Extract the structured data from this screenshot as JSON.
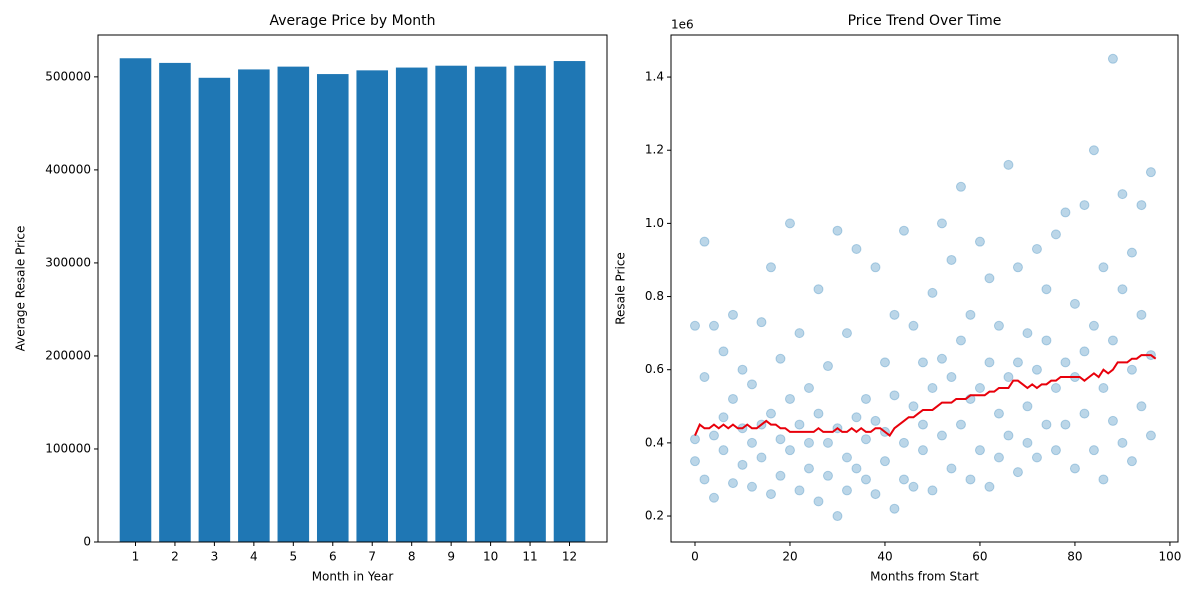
{
  "chart_data": [
    {
      "type": "bar",
      "title": "Average Price by Month",
      "x_label": "Month in Year",
      "y_label": "Average Resale Price",
      "categories": [
        "1",
        "2",
        "3",
        "4",
        "5",
        "6",
        "7",
        "8",
        "9",
        "10",
        "11",
        "12"
      ],
      "values": [
        520000,
        515000,
        499000,
        508000,
        511000,
        503000,
        507000,
        510000,
        512000,
        511000,
        512000,
        517000
      ],
      "color": "#1f77b4",
      "ylim": [
        0,
        545000
      ],
      "yticks": [
        0,
        100000,
        200000,
        300000,
        400000,
        500000
      ]
    },
    {
      "type": "scatter",
      "title": "Price Trend Over Time",
      "x_label": "Months from Start",
      "y_label": "Resale Price",
      "y_offset_label": "1e6",
      "xlim": [
        -5.05,
        101.7
      ],
      "xticks": [
        0,
        20,
        40,
        60,
        80,
        100
      ],
      "ylim": [
        0.129,
        1.515
      ],
      "yticks": [
        0.2,
        0.4,
        0.6,
        0.8,
        {
          "value": 1,
          "label": "1.0"
        },
        1.2,
        1.4
      ],
      "series": [
        {
          "type": "scatter",
          "color": "#1f77b4",
          "alpha": 0.3,
          "x": [
            0,
            0,
            0,
            2,
            2,
            2,
            4,
            4,
            4,
            6,
            6,
            6,
            8,
            8,
            8,
            10,
            10,
            10,
            12,
            12,
            12,
            14,
            14,
            14,
            16,
            16,
            16,
            18,
            18,
            18,
            20,
            20,
            20,
            22,
            22,
            22,
            24,
            24,
            24,
            26,
            26,
            26,
            28,
            28,
            28,
            30,
            30,
            30,
            32,
            32,
            32,
            34,
            34,
            34,
            36,
            36,
            36,
            38,
            38,
            38,
            40,
            40,
            40,
            42,
            42,
            42,
            44,
            44,
            44,
            46,
            46,
            46,
            48,
            48,
            48,
            50,
            50,
            50,
            52,
            52,
            52,
            54,
            54,
            54,
            56,
            56,
            56,
            58,
            58,
            58,
            60,
            60,
            60,
            62,
            62,
            62,
            64,
            64,
            64,
            66,
            66,
            66,
            68,
            68,
            68,
            70,
            70,
            70,
            72,
            72,
            72,
            74,
            74,
            74,
            76,
            76,
            76,
            78,
            78,
            78,
            80,
            80,
            80,
            82,
            82,
            82,
            84,
            84,
            84,
            86,
            86,
            86,
            88,
            88,
            88,
            90,
            90,
            90,
            92,
            92,
            92,
            94,
            94,
            94,
            96,
            96,
            96
          ],
          "values": [
            0.35,
            0.72,
            0.41,
            0.3,
            0.58,
            0.95,
            0.42,
            0.25,
            0.72,
            0.38,
            0.65,
            0.47,
            0.29,
            0.52,
            0.75,
            0.44,
            0.34,
            0.6,
            0.4,
            0.28,
            0.56,
            0.36,
            0.73,
            0.45,
            0.26,
            0.48,
            0.88,
            0.41,
            0.31,
            0.63,
            0.38,
            1.0,
            0.52,
            0.45,
            0.27,
            0.7,
            0.33,
            0.55,
            0.4,
            0.24,
            0.48,
            0.82,
            0.4,
            0.61,
            0.31,
            0.2,
            0.44,
            0.98,
            0.36,
            0.7,
            0.27,
            0.47,
            0.93,
            0.33,
            0.3,
            0.52,
            0.41,
            0.26,
            0.88,
            0.46,
            0.35,
            0.62,
            0.43,
            0.22,
            0.53,
            0.75,
            0.4,
            0.98,
            0.3,
            0.5,
            0.28,
            0.72,
            0.38,
            0.62,
            0.45,
            0.27,
            0.81,
            0.55,
            0.42,
            1.0,
            0.63,
            0.33,
            0.58,
            0.9,
            0.45,
            1.1,
            0.68,
            0.3,
            0.75,
            0.52,
            0.55,
            0.95,
            0.38,
            0.28,
            0.62,
            0.85,
            0.48,
            0.72,
            0.36,
            0.58,
            1.16,
            0.42,
            0.32,
            0.88,
            0.62,
            0.5,
            0.7,
            0.4,
            0.36,
            0.93,
            0.6,
            0.45,
            0.68,
            0.82,
            0.55,
            0.38,
            0.97,
            0.62,
            1.03,
            0.45,
            0.33,
            0.78,
            0.58,
            0.48,
            0.65,
            1.05,
            0.38,
            1.2,
            0.72,
            0.55,
            0.88,
            0.3,
            0.68,
            1.45,
            0.46,
            0.4,
            0.82,
            1.08,
            0.6,
            0.35,
            0.92,
            0.5,
            0.75,
            1.05,
            0.42,
            1.14,
            0.64
          ]
        },
        {
          "type": "line",
          "color": "#e8000b",
          "x": [
            0,
            1,
            2,
            3,
            4,
            5,
            6,
            7,
            8,
            9,
            10,
            11,
            12,
            13,
            14,
            15,
            16,
            17,
            18,
            19,
            20,
            21,
            22,
            23,
            24,
            25,
            26,
            27,
            28,
            29,
            30,
            31,
            32,
            33,
            34,
            35,
            36,
            37,
            38,
            39,
            40,
            41,
            42,
            43,
            44,
            45,
            46,
            47,
            48,
            49,
            50,
            51,
            52,
            53,
            54,
            55,
            56,
            57,
            58,
            59,
            60,
            61,
            62,
            63,
            64,
            65,
            66,
            67,
            68,
            69,
            70,
            71,
            72,
            73,
            74,
            75,
            76,
            77,
            78,
            79,
            80,
            81,
            82,
            83,
            84,
            85,
            86,
            87,
            88,
            89,
            90,
            91,
            92,
            93,
            94,
            95,
            96,
            97
          ],
          "values": [
            0.42,
            0.45,
            0.44,
            0.44,
            0.45,
            0.44,
            0.45,
            0.44,
            0.45,
            0.44,
            0.44,
            0.45,
            0.44,
            0.44,
            0.45,
            0.46,
            0.45,
            0.45,
            0.44,
            0.44,
            0.43,
            0.43,
            0.43,
            0.43,
            0.43,
            0.43,
            0.44,
            0.43,
            0.43,
            0.43,
            0.44,
            0.43,
            0.43,
            0.44,
            0.43,
            0.44,
            0.43,
            0.43,
            0.44,
            0.44,
            0.43,
            0.42,
            0.44,
            0.45,
            0.46,
            0.47,
            0.47,
            0.48,
            0.49,
            0.49,
            0.49,
            0.5,
            0.51,
            0.51,
            0.51,
            0.52,
            0.52,
            0.52,
            0.53,
            0.53,
            0.53,
            0.53,
            0.54,
            0.54,
            0.55,
            0.55,
            0.55,
            0.57,
            0.57,
            0.56,
            0.55,
            0.56,
            0.55,
            0.56,
            0.56,
            0.57,
            0.57,
            0.58,
            0.58,
            0.58,
            0.58,
            0.58,
            0.57,
            0.58,
            0.59,
            0.58,
            0.6,
            0.59,
            0.6,
            0.62,
            0.62,
            0.62,
            0.63,
            0.63,
            0.64,
            0.64,
            0.64,
            0.63
          ]
        }
      ]
    }
  ]
}
